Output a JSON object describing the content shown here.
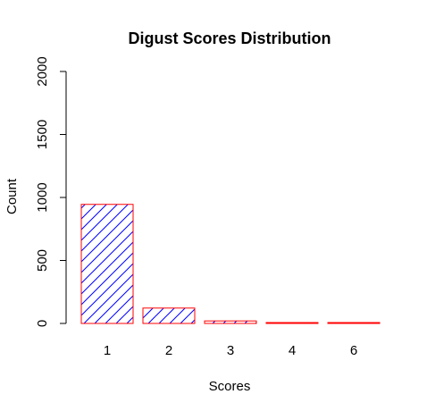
{
  "chart_data": {
    "type": "bar",
    "title": "Digust Scores Distribution",
    "xlabel": "Scores",
    "ylabel": "Count",
    "categories": [
      "1",
      "2",
      "3",
      "4",
      "6"
    ],
    "values": [
      945,
      122,
      20,
      5,
      3
    ],
    "ylim": [
      0,
      2000
    ],
    "yticks": [
      0,
      500,
      1000,
      1500,
      2000
    ],
    "grid": false,
    "legend": "none",
    "bar_fill_pattern": "diagonal-hatch",
    "colors": {
      "bar_border": "#ff0000",
      "hatch": "#0000ff",
      "axis": "#000000"
    }
  }
}
